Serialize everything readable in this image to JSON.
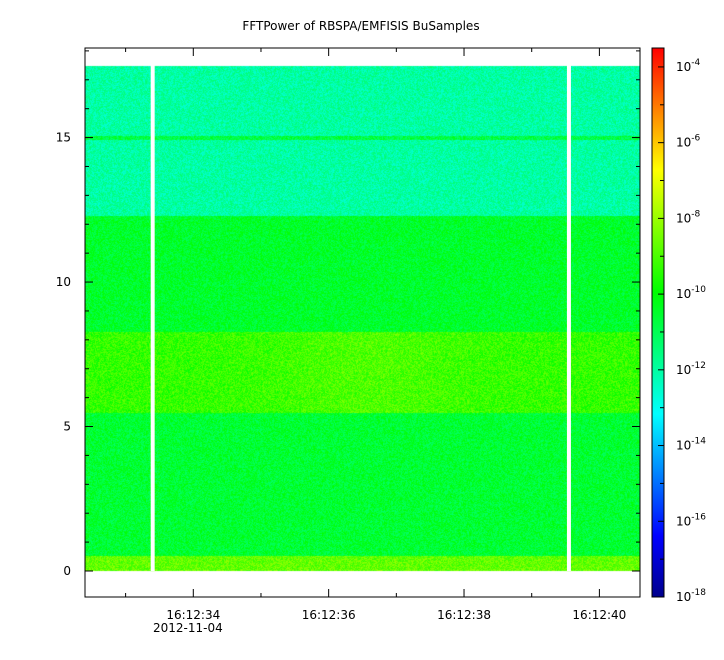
{
  "chart_data": {
    "type": "heatmap",
    "title": "FFTPower of RBSPA/EMFISIS  BuSamples",
    "x_axis": {
      "ticks": [
        {
          "label": "16:12:34",
          "t": 34
        },
        {
          "label": "16:12:36",
          "t": 36
        },
        {
          "label": "16:12:38",
          "t": 38
        },
        {
          "label": "16:12:40",
          "t": 40
        }
      ],
      "date_label": "2012-11-04",
      "range_seconds": [
        32.4,
        40.6
      ],
      "minor_tick_seconds": [
        33.0,
        35.0,
        37.0,
        39.0
      ]
    },
    "y_axis": {
      "ticks": [
        0,
        5,
        10,
        15
      ],
      "range": [
        -0.9,
        18.1
      ]
    },
    "colorbar": {
      "scale": "log",
      "range_exponents": [
        -18,
        -3.5
      ],
      "ticks": [
        {
          "base": "10",
          "exp": "-4"
        },
        {
          "base": "10",
          "exp": "-6"
        },
        {
          "base": "10",
          "exp": "-8"
        },
        {
          "base": "10",
          "exp": "-10"
        },
        {
          "base": "10",
          "exp": "-12"
        },
        {
          "base": "10",
          "exp": "-14"
        },
        {
          "base": "10",
          "exp": "-16"
        },
        {
          "base": "10",
          "exp": "-18"
        }
      ],
      "colors": [
        "#00008c",
        "#0000ff",
        "#0080ff",
        "#00ffff",
        "#00ff80",
        "#00ff00",
        "#80ff00",
        "#ffff00",
        "#ff8000",
        "#ff0000"
      ]
    },
    "data": {
      "time_start_s": 32.4,
      "time_end_s": 40.6,
      "freq_max": 17.5,
      "gaps_seconds": [
        33.4,
        39.55
      ],
      "freq_bands": [
        {
          "from": 0.0,
          "to": 0.55,
          "log_power": -8.7
        },
        {
          "from": 0.55,
          "to": 5.5,
          "log_power": -10.6
        },
        {
          "from": 5.5,
          "to": 8.3,
          "log_power": -9.3
        },
        {
          "from": 8.3,
          "to": 12.3,
          "log_power": -10.5
        },
        {
          "from": 12.3,
          "to": 17.5,
          "log_power": -12.0
        }
      ],
      "line_feature": {
        "freq": 15.0,
        "log_power": -10.8
      }
    }
  }
}
